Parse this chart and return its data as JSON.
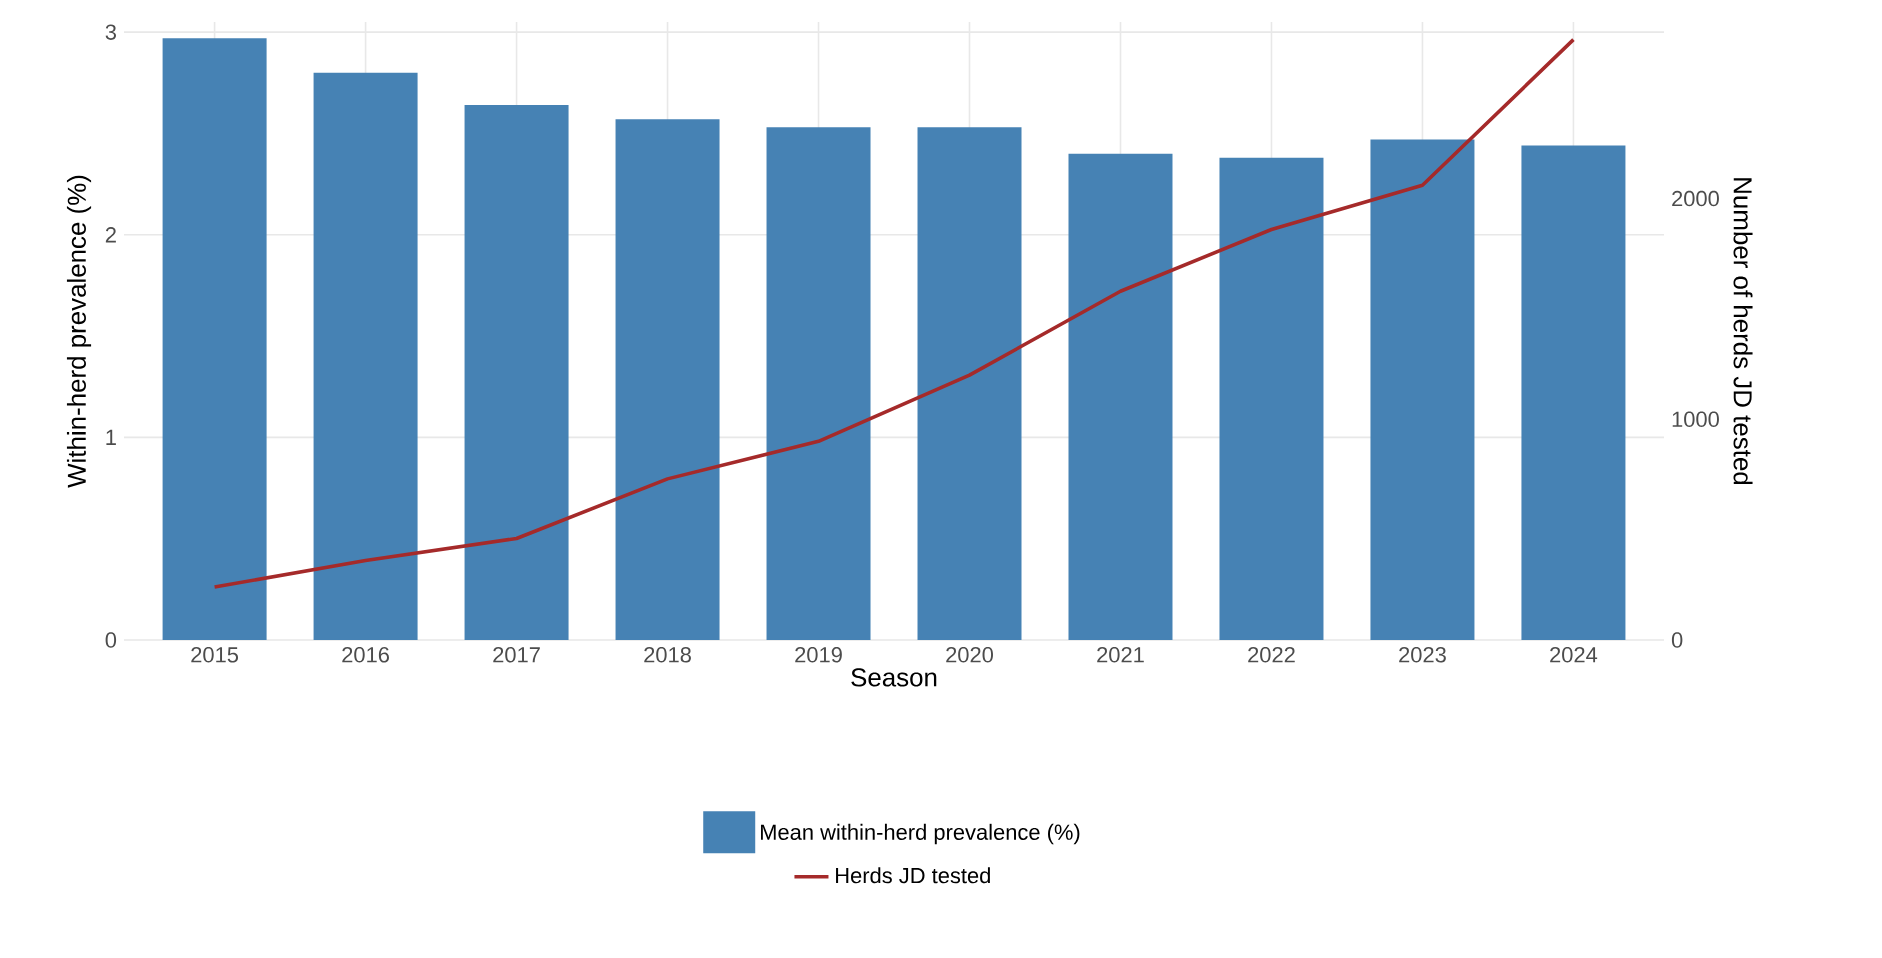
{
  "chart_data": {
    "type": "bar",
    "xlabel": "Season",
    "ylabel": "Within-herd prevalence (%)",
    "y2label": "Number of herds JD tested",
    "categories": [
      "2015",
      "2016",
      "2017",
      "2018",
      "2019",
      "2020",
      "2021",
      "2022",
      "2023",
      "2024"
    ],
    "series": [
      {
        "name": "Mean within-herd prevalence (%)",
        "color": "#4682b4",
        "values": [
          2.97,
          2.8,
          2.64,
          2.57,
          2.53,
          2.53,
          2.4,
          2.38,
          2.47,
          2.44
        ]
      },
      {
        "name": "Herds JD tested",
        "type": "line",
        "axis": "y2",
        "color": "#a52a2a",
        "values": [
          240,
          360,
          460,
          730,
          900,
          1200,
          1580,
          1860,
          2060,
          2720
        ]
      }
    ],
    "ylim": [
      0,
      3.05
    ],
    "yticks": [
      0,
      1,
      2,
      3
    ],
    "y2lim": [
      0,
      2800
    ],
    "y2ticks": [
      0,
      1000,
      2000
    ],
    "grid": true,
    "legend": "bottom"
  }
}
